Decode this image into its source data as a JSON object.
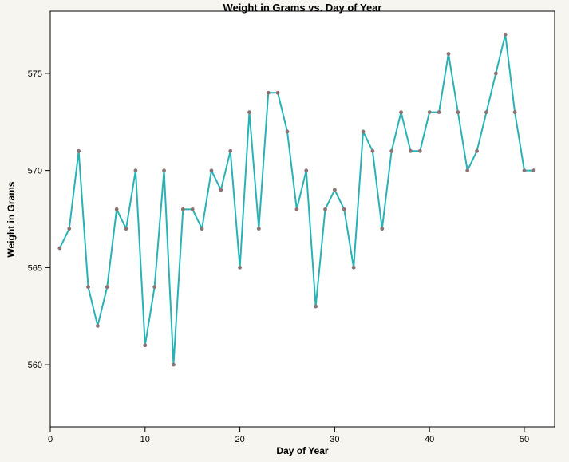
{
  "chart_data": {
    "type": "line",
    "title": "Weight in Grams vs. Day of Year",
    "xlabel": "Day of Year",
    "ylabel": "Weight in Grams",
    "x": [
      1,
      2,
      3,
      4,
      5,
      6,
      7,
      8,
      9,
      10,
      11,
      12,
      13,
      14,
      15,
      16,
      17,
      18,
      19,
      20,
      21,
      22,
      23,
      24,
      25,
      26,
      27,
      28,
      29,
      30,
      31,
      32,
      33,
      34,
      35,
      36,
      37,
      38,
      39,
      40,
      41,
      42,
      43,
      44,
      45,
      46,
      47,
      48,
      49,
      50,
      51
    ],
    "values": [
      566,
      567,
      571,
      564,
      562,
      564,
      568,
      567,
      570,
      561,
      564,
      570,
      560,
      568,
      568,
      567,
      570,
      569,
      571,
      565,
      573,
      567,
      574,
      574,
      572,
      568,
      570,
      563,
      568,
      569,
      568,
      565,
      572,
      571,
      567,
      571,
      573,
      571,
      571,
      573,
      573,
      576,
      573,
      570,
      571,
      573,
      575,
      577,
      573,
      570,
      570
    ],
    "x_ticks": [
      0,
      10,
      20,
      30,
      40,
      50
    ],
    "y_ticks": [
      560,
      565,
      570,
      575
    ],
    "xlim": [
      0,
      53.2
    ],
    "ylim": [
      556.8,
      578.2
    ],
    "grid": false,
    "legend": "none",
    "line_color": "#27b2b5",
    "marker_color": "#8d7474",
    "axis_color": "#000000",
    "plot_background": "#ffffff",
    "outer_background": "#f6f5ef"
  }
}
